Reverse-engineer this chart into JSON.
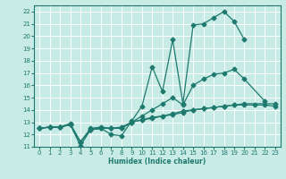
{
  "xlabel": "Humidex (Indice chaleur)",
  "xlim": [
    -0.5,
    23.5
  ],
  "ylim": [
    11,
    22.5
  ],
  "yticks": [
    11,
    12,
    13,
    14,
    15,
    16,
    17,
    18,
    19,
    20,
    21,
    22
  ],
  "xticks": [
    0,
    1,
    2,
    3,
    4,
    5,
    6,
    7,
    8,
    9,
    10,
    11,
    12,
    13,
    14,
    15,
    16,
    17,
    18,
    19,
    20,
    21,
    22,
    23
  ],
  "bg_color": "#c8ebe6",
  "line_color": "#1e7a6e",
  "grid_color": "#ffffff",
  "lines": [
    {
      "x": [
        0,
        1,
        2,
        3,
        4,
        5,
        6,
        7,
        8,
        9,
        10,
        11,
        12,
        13,
        14,
        15,
        16,
        17,
        18,
        19,
        20
      ],
      "y": [
        12.5,
        12.6,
        12.6,
        12.8,
        11.1,
        12.4,
        12.5,
        12.0,
        11.9,
        13.1,
        14.3,
        17.5,
        15.5,
        19.7,
        14.5,
        20.9,
        21.0,
        21.5,
        22.0,
        21.2,
        19.7
      ],
      "marker": "D",
      "ms": 2.5
    },
    {
      "x": [
        0,
        1,
        2,
        3,
        4,
        5,
        6,
        7,
        8,
        9,
        10,
        11,
        12,
        13,
        14,
        15,
        16,
        17,
        18,
        19,
        20,
        22
      ],
      "y": [
        12.5,
        12.6,
        12.6,
        12.8,
        11.4,
        12.4,
        12.5,
        12.5,
        12.5,
        13.0,
        13.5,
        14.0,
        14.5,
        15.0,
        14.4,
        16.0,
        16.5,
        16.9,
        17.0,
        17.3,
        16.5,
        14.7
      ],
      "marker": "D",
      "ms": 2.5
    },
    {
      "x": [
        0,
        1,
        2,
        3,
        4,
        5,
        6,
        7,
        8,
        9,
        10,
        11,
        12,
        13,
        14,
        15,
        16,
        17,
        18,
        19,
        20,
        23
      ],
      "y": [
        12.5,
        12.6,
        12.6,
        12.9,
        11.4,
        12.5,
        12.6,
        12.5,
        12.6,
        13.0,
        13.2,
        13.3,
        13.5,
        13.6,
        13.8,
        14.0,
        14.1,
        14.2,
        14.3,
        14.4,
        14.5,
        14.5
      ],
      "marker": "D",
      "ms": 2.5
    },
    {
      "x": [
        0,
        1,
        2,
        3,
        4,
        5,
        6,
        7,
        8,
        9,
        10,
        11,
        12,
        13,
        14,
        15,
        16,
        17,
        18,
        19,
        20,
        21,
        22,
        23
      ],
      "y": [
        12.5,
        12.6,
        12.6,
        12.8,
        11.4,
        12.4,
        12.5,
        12.5,
        12.5,
        13.0,
        13.2,
        13.4,
        13.5,
        13.7,
        13.9,
        14.0,
        14.1,
        14.2,
        14.3,
        14.4,
        14.4,
        14.4,
        14.4,
        14.3
      ],
      "marker": "D",
      "ms": 2.5
    }
  ]
}
